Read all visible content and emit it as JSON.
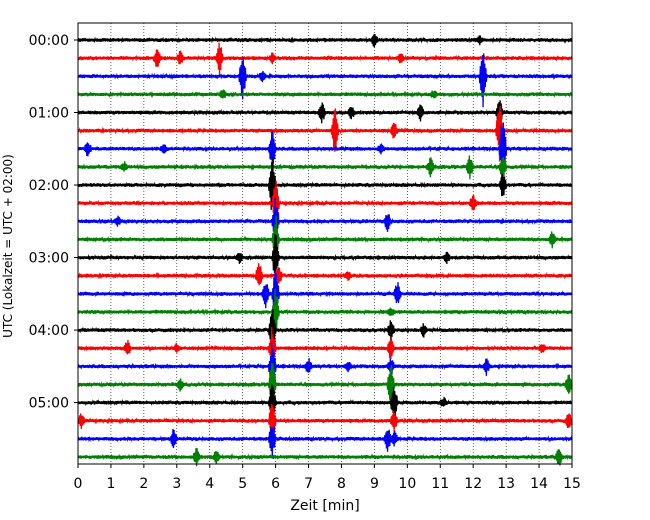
{
  "chart_data": {
    "type": "line",
    "title": "",
    "xlabel": "Zeit  [min]",
    "ylabel": "UTC (Lokalzeit = UTC + 02:00)",
    "xlim": [
      0,
      15
    ],
    "x_ticks": [
      "0",
      "1",
      "2",
      "3",
      "4",
      "5",
      "6",
      "7",
      "8",
      "9",
      "10",
      "11",
      "12",
      "13",
      "14",
      "15"
    ],
    "y_tick_labels": [
      "00:00",
      "01:00",
      "02:00",
      "03:00",
      "04:00",
      "05:00"
    ],
    "grid": "vertical dotted lines at each minute",
    "trace_interval_minutes": 15,
    "trace_colors": [
      "#000000",
      "#ff0000",
      "#0000ff",
      "#008000"
    ],
    "traces": [
      {
        "start": "00:00",
        "color": "#000000",
        "events": [
          [
            9.0,
            7
          ],
          [
            12.2,
            4
          ]
        ]
      },
      {
        "start": "00:15",
        "color": "#ff0000",
        "events": [
          [
            2.4,
            10
          ],
          [
            3.1,
            7
          ],
          [
            4.3,
            18
          ],
          [
            5.9,
            5
          ],
          [
            9.8,
            5
          ]
        ]
      },
      {
        "start": "00:30",
        "color": "#0000ff",
        "events": [
          [
            5.0,
            28
          ],
          [
            5.6,
            6
          ],
          [
            12.3,
            35
          ]
        ]
      },
      {
        "start": "00:45",
        "color": "#008000",
        "events": [
          [
            4.4,
            5
          ],
          [
            10.8,
            4
          ]
        ]
      },
      {
        "start": "01:00",
        "color": "#000000",
        "events": [
          [
            7.4,
            12
          ],
          [
            8.3,
            7
          ],
          [
            10.4,
            8
          ],
          [
            12.8,
            14
          ]
        ]
      },
      {
        "start": "01:15",
        "color": "#ff0000",
        "events": [
          [
            7.8,
            26
          ],
          [
            9.6,
            9
          ],
          [
            12.8,
            30
          ]
        ]
      },
      {
        "start": "01:30",
        "color": "#0000ff",
        "events": [
          [
            0.3,
            8
          ],
          [
            2.6,
            5
          ],
          [
            5.9,
            22
          ],
          [
            9.2,
            5
          ],
          [
            12.9,
            40
          ]
        ]
      },
      {
        "start": "01:45",
        "color": "#008000",
        "events": [
          [
            1.4,
            5
          ],
          [
            10.7,
            10
          ],
          [
            11.9,
            12
          ],
          [
            12.9,
            14
          ]
        ]
      },
      {
        "start": "02:00",
        "color": "#000000",
        "events": [
          [
            5.9,
            38
          ],
          [
            12.9,
            14
          ]
        ]
      },
      {
        "start": "02:15",
        "color": "#ff0000",
        "events": [
          [
            6.0,
            26
          ],
          [
            12.0,
            10
          ]
        ]
      },
      {
        "start": "02:30",
        "color": "#0000ff",
        "events": [
          [
            1.2,
            5
          ],
          [
            6.0,
            26
          ],
          [
            9.4,
            10
          ]
        ]
      },
      {
        "start": "02:45",
        "color": "#008000",
        "events": [
          [
            6.0,
            28
          ],
          [
            14.4,
            9
          ]
        ]
      },
      {
        "start": "03:00",
        "color": "#000000",
        "events": [
          [
            4.9,
            5
          ],
          [
            6.0,
            26
          ],
          [
            11.2,
            5
          ]
        ]
      },
      {
        "start": "03:15",
        "color": "#ff0000",
        "events": [
          [
            5.5,
            14
          ],
          [
            6.1,
            9
          ],
          [
            8.2,
            4
          ]
        ]
      },
      {
        "start": "03:30",
        "color": "#0000ff",
        "events": [
          [
            5.7,
            14
          ],
          [
            6.0,
            26
          ],
          [
            9.7,
            12
          ]
        ]
      },
      {
        "start": "03:45",
        "color": "#008000",
        "events": [
          [
            6.0,
            26
          ],
          [
            9.5,
            5
          ]
        ]
      },
      {
        "start": "04:00",
        "color": "#000000",
        "events": [
          [
            5.9,
            26
          ],
          [
            9.5,
            10
          ],
          [
            10.5,
            7
          ]
        ]
      },
      {
        "start": "04:15",
        "color": "#ff0000",
        "events": [
          [
            1.5,
            8
          ],
          [
            3.0,
            5
          ],
          [
            5.9,
            26
          ],
          [
            9.5,
            12
          ],
          [
            14.1,
            5
          ]
        ]
      },
      {
        "start": "04:30",
        "color": "#0000ff",
        "events": [
          [
            5.9,
            26
          ],
          [
            7.0,
            8
          ],
          [
            8.2,
            5
          ],
          [
            9.5,
            10
          ],
          [
            12.4,
            8
          ]
        ]
      },
      {
        "start": "04:45",
        "color": "#008000",
        "events": [
          [
            3.1,
            6
          ],
          [
            5.9,
            26
          ],
          [
            9.5,
            24
          ],
          [
            14.9,
            12
          ]
        ]
      },
      {
        "start": "05:00",
        "color": "#000000",
        "events": [
          [
            5.9,
            26
          ],
          [
            9.6,
            20
          ],
          [
            11.1,
            5
          ]
        ]
      },
      {
        "start": "05:15",
        "color": "#ff0000",
        "events": [
          [
            0.1,
            8
          ],
          [
            5.9,
            26
          ],
          [
            9.6,
            10
          ],
          [
            14.9,
            8
          ]
        ]
      },
      {
        "start": "05:30",
        "color": "#0000ff",
        "events": [
          [
            2.9,
            10
          ],
          [
            5.9,
            20
          ],
          [
            9.4,
            14
          ],
          [
            9.6,
            8
          ]
        ]
      },
      {
        "start": "05:45",
        "color": "#008000",
        "events": [
          [
            3.6,
            9
          ],
          [
            4.2,
            6
          ],
          [
            14.6,
            10
          ]
        ]
      }
    ]
  }
}
